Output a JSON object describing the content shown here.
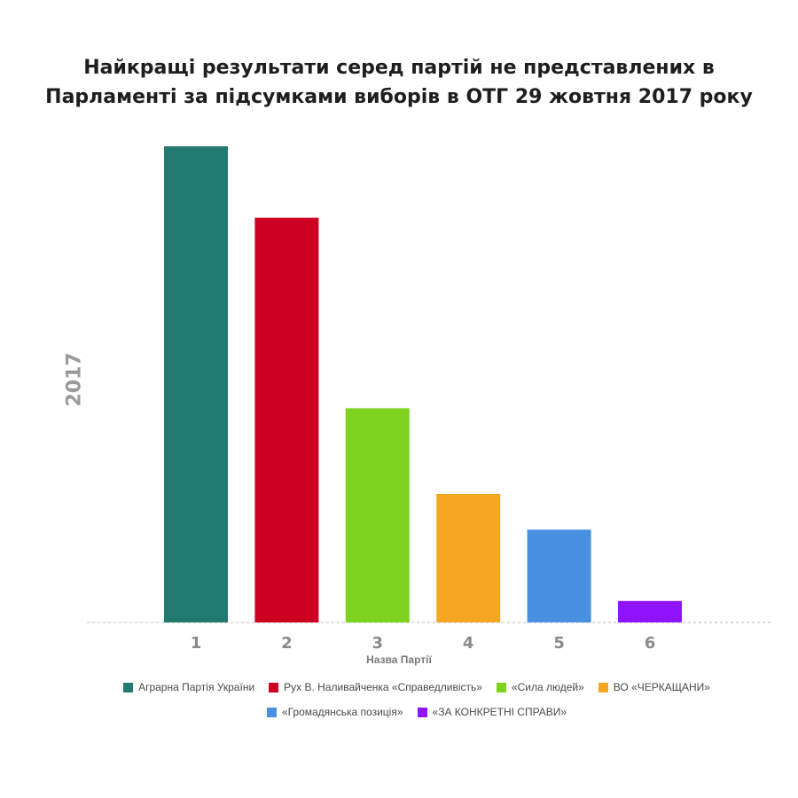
{
  "chart_data": {
    "type": "bar",
    "title": [
      "Найкращі результати серед партій не представлених в",
      "Парламенті за підсумками виборів в ОТГ 29 жовтня 2017 року"
    ],
    "xlabel": "Назва Партії",
    "ylabel": "2017",
    "categories": [
      "1",
      "2",
      "3",
      "4",
      "5",
      "6"
    ],
    "values": [
      100,
      85,
      45,
      27,
      19.5,
      4.5
    ],
    "ylim": [
      0,
      100
    ],
    "y_ticks_shown": false,
    "grid": false,
    "baseline": "dashed",
    "legend_position": "bottom",
    "series_colors": [
      "#227a70",
      "#cc0020",
      "#7ed321",
      "#f5a623",
      "#4a90e2",
      "#9013fe"
    ],
    "legend": [
      {
        "label": "Аграрна Партія України",
        "color": "#227a70"
      },
      {
        "label": "Рух В. Наливайченка «Справедливість»",
        "color": "#cc0020"
      },
      {
        "label": "«Сила людей»",
        "color": "#7ed321"
      },
      {
        "label": "ВО «ЧЕРКАЩАНИ»",
        "color": "#f5a623"
      },
      {
        "label": "«Громадянська позиція»",
        "color": "#4a90e2"
      },
      {
        "label": "«ЗА КОНКРЕТНІ СПРАВИ»",
        "color": "#9013fe"
      }
    ]
  }
}
